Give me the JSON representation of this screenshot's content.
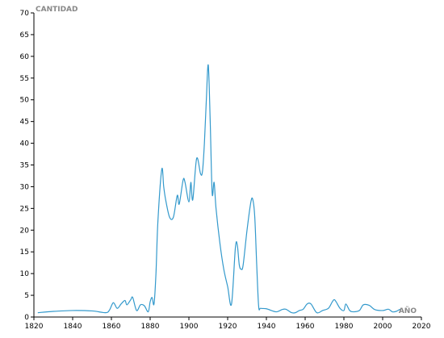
{
  "chart_data": {
    "type": "line",
    "title": "",
    "xlabel": "AÑO",
    "ylabel": "CANTIDAD",
    "xlim": [
      1820,
      2020
    ],
    "ylim": [
      0,
      70
    ],
    "x_ticks": [
      1820,
      1840,
      1860,
      1880,
      1900,
      1920,
      1940,
      1960,
      1980,
      2000,
      2020
    ],
    "y_ticks": [
      0,
      5,
      10,
      15,
      20,
      25,
      30,
      35,
      40,
      45,
      50,
      55,
      60,
      65,
      70
    ],
    "grid": false,
    "line_color": "#3399cc",
    "series": [
      {
        "x": [
          1822,
          1830,
          1840,
          1850,
          1857,
          1859,
          1861,
          1863,
          1865,
          1867,
          1868,
          1870,
          1871,
          1873,
          1875,
          1877,
          1879,
          1880,
          1881,
          1882,
          1883,
          1884,
          1886,
          1887,
          1888,
          1890,
          1892,
          1894,
          1895,
          1897,
          1898,
          1900,
          1901,
          1902,
          1904,
          1906,
          1907,
          1908,
          1909,
          1910,
          1911,
          1912,
          1913,
          1914,
          1916,
          1918,
          1920,
          1922,
          1924,
          1925,
          1926,
          1927,
          1928,
          1930,
          1932,
          1933,
          1934,
          1935,
          1936,
          1937,
          1940,
          1945,
          1948,
          1950,
          1953,
          1955,
          1957,
          1959,
          1961,
          1963,
          1966,
          1969,
          1972,
          1974,
          1975,
          1976,
          1978,
          1980,
          1981,
          1983,
          1985,
          1988,
          1990,
          1993,
          1996,
          2000,
          2003,
          2005,
          2007,
          2009
        ],
        "y": [
          1.0,
          1.3,
          1.5,
          1.4,
          1.0,
          1.6,
          3.3,
          2.0,
          3.0,
          3.8,
          2.8,
          4.0,
          4.5,
          1.5,
          2.8,
          2.6,
          1.2,
          3.5,
          4.5,
          3.0,
          10.0,
          22.0,
          34.0,
          30.0,
          27.0,
          23.0,
          23.0,
          28.0,
          26.0,
          31.5,
          31.0,
          26.5,
          31.0,
          27.0,
          36.5,
          33.0,
          33.5,
          40.0,
          50.0,
          58.0,
          45.0,
          28.5,
          31.0,
          25.0,
          17.0,
          11.0,
          7.0,
          3.0,
          16.0,
          16.5,
          12.0,
          11.0,
          12.0,
          20.0,
          26.5,
          27.0,
          23.0,
          12.0,
          2.5,
          2.0,
          1.9,
          1.2,
          1.7,
          1.8,
          1.0,
          1.0,
          1.5,
          1.8,
          3.0,
          3.0,
          1.0,
          1.5,
          2.0,
          3.5,
          4.0,
          3.5,
          2.0,
          1.5,
          3.0,
          1.5,
          1.2,
          1.5,
          2.8,
          2.7,
          1.7,
          1.5,
          1.8,
          1.2,
          1.3,
          1.8
        ]
      }
    ]
  }
}
